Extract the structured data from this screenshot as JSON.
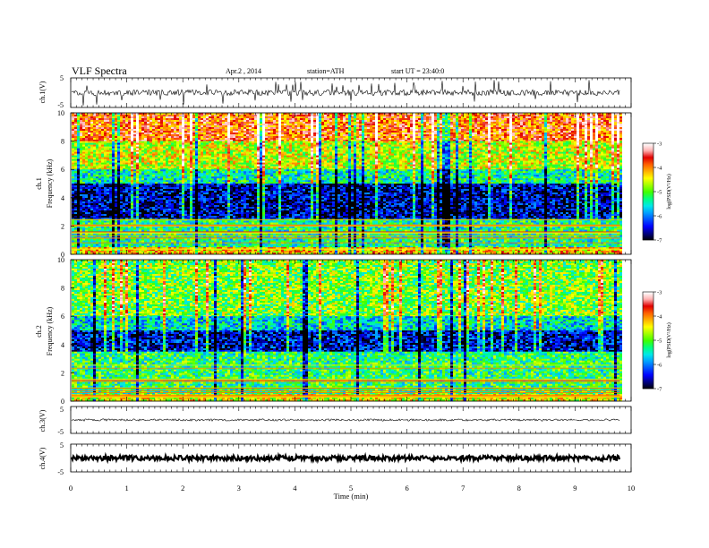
{
  "header": {
    "title": "VLF Spectra",
    "date": "Apr.2 , 2014",
    "station": "station=ATH",
    "start": "start UT = 23:40:0"
  },
  "chart_data": [
    {
      "id": "ch1-waveform",
      "type": "line",
      "ylabel": "ch.1(V)",
      "ylim": [
        -5,
        5
      ],
      "yticks": [
        "5",
        "-5"
      ],
      "description_values": {
        "baseline_v": 0,
        "typical_amplitude_v": 1.0,
        "spike_amplitude_v": 4
      }
    },
    {
      "id": "ch1-spectrogram",
      "type": "heatmap",
      "ylabel_top": "ch.1",
      "ylabel": "Frequency (kHz)",
      "ylim": [
        0,
        10
      ],
      "yticks": [
        "0",
        "2",
        "4",
        "6",
        "8",
        "10"
      ],
      "bands": [
        {
          "from_khz": 8.0,
          "to_khz": 10.0,
          "level": -3.8
        },
        {
          "from_khz": 6.0,
          "to_khz": 8.0,
          "level": -4.6
        },
        {
          "from_khz": 5.0,
          "to_khz": 6.0,
          "level": -5.4
        },
        {
          "from_khz": 2.5,
          "to_khz": 5.0,
          "level": -6.6
        },
        {
          "from_khz": 0.5,
          "to_khz": 2.5,
          "level": -5.3
        },
        {
          "from_khz": 0.0,
          "to_khz": 0.5,
          "level": -4.2
        }
      ],
      "colorbar": {
        "label": "log(PSD(V²/Hz)",
        "ticks": [
          "-3",
          "-4",
          "-5",
          "-6",
          "-7"
        ],
        "range": [
          -7,
          -3
        ]
      }
    },
    {
      "id": "ch2-spectrogram",
      "type": "heatmap",
      "ylabel_top": "ch.2",
      "ylabel": "Frequency (kHz)",
      "ylim": [
        0,
        10
      ],
      "yticks": [
        "0",
        "2",
        "4",
        "6",
        "8",
        "10"
      ],
      "bands": [
        {
          "from_khz": 6.0,
          "to_khz": 10.0,
          "level": -4.9
        },
        {
          "from_khz": 5.0,
          "to_khz": 6.0,
          "level": -5.6
        },
        {
          "from_khz": 3.5,
          "to_khz": 5.0,
          "level": -6.5
        },
        {
          "from_khz": 0.5,
          "to_khz": 3.5,
          "level": -5.2
        },
        {
          "from_khz": 0.0,
          "to_khz": 0.5,
          "level": -4.5
        }
      ],
      "colorbar": {
        "label": "log(PSD(V²/Hz)",
        "ticks": [
          "-3",
          "-4",
          "-5",
          "-6",
          "-7"
        ],
        "range": [
          -7,
          -3
        ]
      }
    },
    {
      "id": "ch3-waveform",
      "type": "line",
      "ylabel": "ch.3(V)",
      "ylim": [
        -5,
        5
      ],
      "yticks": [
        "5",
        "-5"
      ],
      "description_values": {
        "baseline_v": 0,
        "typical_amplitude_v": 0.1
      }
    },
    {
      "id": "ch4-waveform",
      "type": "line",
      "ylabel": "ch.4(V)",
      "ylim": [
        -5,
        5
      ],
      "yticks": [
        "5",
        "-5"
      ],
      "description_values": {
        "baseline_v": 0,
        "typical_amplitude_v": 0.3
      }
    }
  ],
  "xaxis": {
    "label": "Time (min)",
    "xlim": [
      0,
      10
    ],
    "data_end_min": 9.8,
    "ticks": [
      "0",
      "1",
      "2",
      "3",
      "4",
      "5",
      "6",
      "7",
      "8",
      "9",
      "10"
    ]
  },
  "colors": {
    "colormap": [
      "#000000",
      "#000080",
      "#0000ff",
      "#0050ff",
      "#00a0ff",
      "#00e8e8",
      "#00ff80",
      "#40ff00",
      "#a0ff00",
      "#ffff00",
      "#ffb000",
      "#ff6000",
      "#e00000",
      "#ffb0b0",
      "#ffffff"
    ]
  }
}
